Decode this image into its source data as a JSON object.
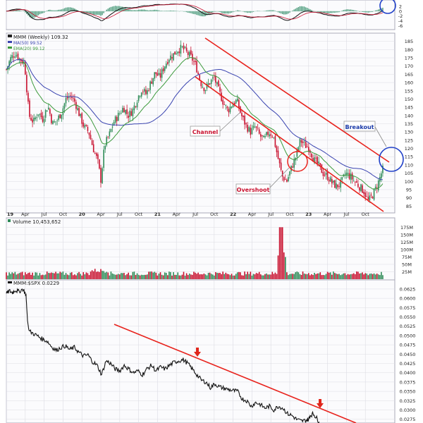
{
  "colors": {
    "up": "#2e8b57",
    "down": "#c8102e",
    "ma": "#3a44b0",
    "ema": "#3c9a3c",
    "trend": "#e8231d",
    "circle": "#2040c8",
    "ratio": "#111111",
    "panelBorder": "#a8a8b8",
    "grid": "#dcdce4",
    "axisText": "#222222",
    "volBarUp": "#2e8b57",
    "volBarDown": "#c8102e",
    "arrow": "#e0261c"
  },
  "chart_data": [
    {
      "type": "line",
      "title": "",
      "xlabel": "",
      "ylabel": "",
      "ylim": [
        -7,
        4
      ],
      "x_range": [
        2019.0,
        2024.0
      ],
      "yticks": [
        "2",
        "0",
        "-2",
        "-4",
        "-6"
      ],
      "series": [
        {
          "kind": "histogram",
          "values": []
        },
        {
          "kind": "macd",
          "values": []
        },
        {
          "kind": "signal",
          "values": []
        }
      ]
    },
    {
      "type": "line",
      "title": "MMM (Weekly) 109.32",
      "xlabel": "",
      "ylabel": "",
      "ylim": [
        80,
        188
      ],
      "x_range": [
        2019.0,
        2024.0
      ],
      "yticks": [
        "185",
        "180",
        "175",
        "170",
        "165",
        "160",
        "155",
        "150",
        "145",
        "140",
        "135",
        "130",
        "125",
        "120",
        "115",
        "110",
        "105",
        "100",
        "95",
        "90",
        "85"
      ],
      "xticks": [
        "19",
        "Apr",
        "Jul",
        "Oct",
        "20",
        "Apr",
        "Jul",
        "Oct",
        "21",
        "Apr",
        "Jul",
        "Oct",
        "22",
        "Apr",
        "Jul",
        "Oct",
        "23",
        "Apr",
        "Jul",
        "Oct"
      ],
      "legend": [
        "MMM (Weekly) 109.32",
        "MA(50) 99.52",
        "EMA(20) 99.12"
      ],
      "price": [
        [
          2019.0,
          168
        ],
        [
          2019.06,
          175
        ],
        [
          2019.12,
          178
        ],
        [
          2019.18,
          174
        ],
        [
          2019.24,
          172
        ],
        [
          2019.3,
          140
        ],
        [
          2019.36,
          136
        ],
        [
          2019.42,
          142
        ],
        [
          2019.48,
          138
        ],
        [
          2019.55,
          146
        ],
        [
          2019.61,
          135
        ],
        [
          2019.67,
          137
        ],
        [
          2019.73,
          142
        ],
        [
          2019.79,
          150
        ],
        [
          2019.85,
          152
        ],
        [
          2019.91,
          148
        ],
        [
          2019.97,
          140
        ],
        [
          2020.03,
          133
        ],
        [
          2020.09,
          130
        ],
        [
          2020.15,
          120
        ],
        [
          2020.21,
          112
        ],
        [
          2020.25,
          101
        ],
        [
          2020.3,
          122
        ],
        [
          2020.36,
          128
        ],
        [
          2020.42,
          136
        ],
        [
          2020.48,
          140
        ],
        [
          2020.55,
          145
        ],
        [
          2020.61,
          140
        ],
        [
          2020.67,
          143
        ],
        [
          2020.73,
          150
        ],
        [
          2020.79,
          156
        ],
        [
          2020.85,
          153
        ],
        [
          2020.91,
          160
        ],
        [
          2020.97,
          166
        ],
        [
          2021.03,
          163
        ],
        [
          2021.09,
          170
        ],
        [
          2021.15,
          175
        ],
        [
          2021.21,
          177
        ],
        [
          2021.27,
          180
        ],
        [
          2021.33,
          181
        ],
        [
          2021.39,
          178
        ],
        [
          2021.45,
          175
        ],
        [
          2021.51,
          170
        ],
        [
          2021.57,
          160
        ],
        [
          2021.63,
          156
        ],
        [
          2021.69,
          160
        ],
        [
          2021.75,
          163
        ],
        [
          2021.81,
          155
        ],
        [
          2021.87,
          148
        ],
        [
          2021.93,
          143
        ],
        [
          2021.99,
          147
        ],
        [
          2022.05,
          149
        ],
        [
          2022.11,
          140
        ],
        [
          2022.17,
          134
        ],
        [
          2022.23,
          130
        ],
        [
          2022.29,
          133
        ],
        [
          2022.35,
          128
        ],
        [
          2022.41,
          125
        ],
        [
          2022.47,
          130
        ],
        [
          2022.53,
          128
        ],
        [
          2022.59,
          115
        ],
        [
          2022.65,
          103
        ],
        [
          2022.71,
          100
        ],
        [
          2022.77,
          108
        ],
        [
          2022.83,
          115
        ],
        [
          2022.89,
          125
        ],
        [
          2022.95,
          122
        ],
        [
          2023.01,
          120
        ],
        [
          2023.07,
          113
        ],
        [
          2023.13,
          110
        ],
        [
          2023.19,
          105
        ],
        [
          2023.25,
          103
        ],
        [
          2023.31,
          99
        ],
        [
          2023.37,
          97
        ],
        [
          2023.43,
          99
        ],
        [
          2023.49,
          105
        ],
        [
          2023.55,
          103
        ],
        [
          2023.61,
          100
        ],
        [
          2023.67,
          97
        ],
        [
          2023.73,
          94
        ],
        [
          2023.79,
          88
        ],
        [
          2023.85,
          92
        ],
        [
          2023.91,
          98
        ],
        [
          2023.97,
          106
        ],
        [
          2024.0,
          109.32
        ]
      ],
      "ma50": [],
      "ema20": []
    },
    {
      "type": "bar",
      "title": "Volume 10,453,652",
      "ylim": [
        0,
        190
      ],
      "yticks": [
        "175M",
        "150M",
        "125M",
        "100M",
        "75M",
        "50M",
        "25M"
      ],
      "values": []
    },
    {
      "type": "line",
      "title": "MMM:$SPX 0.0229",
      "ylim": [
        0.0265,
        0.064
      ],
      "yticks": [
        "0.0625",
        "0.0600",
        "0.0575",
        "0.0550",
        "0.0525",
        "0.0500",
        "0.0475",
        "0.0450",
        "0.0425",
        "0.0400",
        "0.0375",
        "0.0350",
        "0.0325",
        "0.0300",
        "0.0275"
      ],
      "values": [
        [
          2019.0,
          0.0612
        ],
        [
          2019.04,
          0.062
        ],
        [
          2019.08,
          0.0615
        ],
        [
          2019.12,
          0.0622
        ],
        [
          2019.16,
          0.0618
        ],
        [
          2019.22,
          0.0625
        ],
        [
          2019.26,
          0.061
        ],
        [
          2019.28,
          0.054
        ],
        [
          2019.3,
          0.0512
        ],
        [
          2019.36,
          0.0505
        ],
        [
          2019.42,
          0.0498
        ],
        [
          2019.48,
          0.049
        ],
        [
          2019.54,
          0.0485
        ],
        [
          2019.6,
          0.047
        ],
        [
          2019.66,
          0.046
        ],
        [
          2019.72,
          0.0468
        ],
        [
          2019.78,
          0.0472
        ],
        [
          2019.84,
          0.0462
        ],
        [
          2019.9,
          0.0468
        ],
        [
          2019.96,
          0.0455
        ],
        [
          2020.02,
          0.0445
        ],
        [
          2020.08,
          0.0448
        ],
        [
          2020.14,
          0.043
        ],
        [
          2020.2,
          0.042
        ],
        [
          2020.26,
          0.0395
        ],
        [
          2020.32,
          0.0432
        ],
        [
          2020.38,
          0.0425
        ],
        [
          2020.44,
          0.041
        ],
        [
          2020.5,
          0.0405
        ],
        [
          2020.56,
          0.042
        ],
        [
          2020.62,
          0.041
        ],
        [
          2020.68,
          0.04
        ],
        [
          2020.74,
          0.0405
        ],
        [
          2020.8,
          0.0395
        ],
        [
          2020.86,
          0.041
        ],
        [
          2020.92,
          0.042
        ],
        [
          2020.98,
          0.0405
        ],
        [
          2021.04,
          0.0415
        ],
        [
          2021.1,
          0.041
        ],
        [
          2021.16,
          0.042
        ],
        [
          2021.22,
          0.0428
        ],
        [
          2021.28,
          0.0432
        ],
        [
          2021.34,
          0.0435
        ],
        [
          2021.4,
          0.0425
        ],
        [
          2021.46,
          0.041
        ],
        [
          2021.52,
          0.0395
        ],
        [
          2021.58,
          0.038
        ],
        [
          2021.64,
          0.0375
        ],
        [
          2021.7,
          0.036
        ],
        [
          2021.76,
          0.037
        ],
        [
          2021.82,
          0.0362
        ],
        [
          2021.88,
          0.0358
        ],
        [
          2021.94,
          0.0355
        ],
        [
          2022.0,
          0.0352
        ],
        [
          2022.06,
          0.035
        ],
        [
          2022.12,
          0.033
        ],
        [
          2022.18,
          0.0325
        ],
        [
          2022.24,
          0.031
        ],
        [
          2022.3,
          0.032
        ],
        [
          2022.36,
          0.0315
        ],
        [
          2022.42,
          0.0305
        ],
        [
          2022.48,
          0.031
        ],
        [
          2022.54,
          0.03
        ],
        [
          2022.6,
          0.031
        ],
        [
          2022.66,
          0.0305
        ],
        [
          2022.72,
          0.029
        ],
        [
          2022.78,
          0.0285
        ],
        [
          2022.84,
          0.0275
        ],
        [
          2022.9,
          0.027
        ],
        [
          2022.96,
          0.0272
        ],
        [
          2023.0,
          0.0275
        ],
        [
          2023.02,
          0.0285
        ],
        [
          2023.06,
          0.029
        ],
        [
          2023.1,
          0.028
        ],
        [
          2023.14,
          0.0268
        ]
      ]
    }
  ],
  "annotations": {
    "channel": "Channel",
    "overshoot": "Overshoot",
    "breakout": "Breakout"
  }
}
